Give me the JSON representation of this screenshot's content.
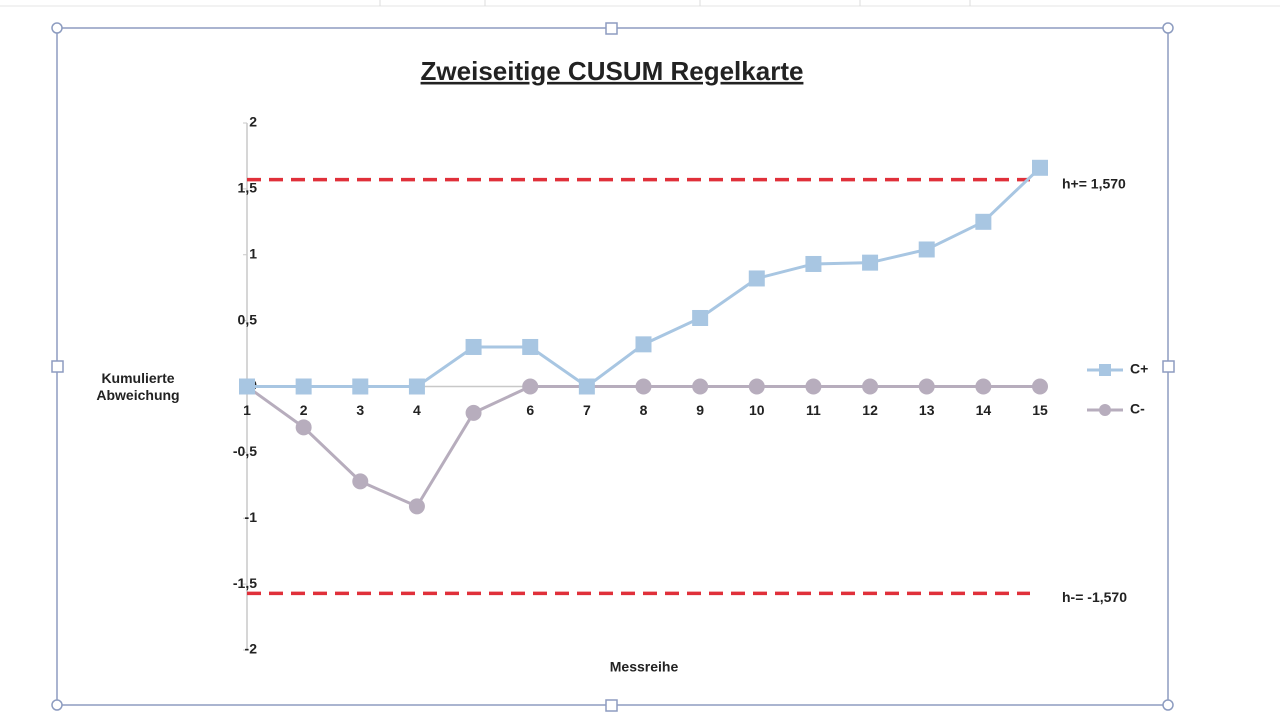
{
  "chart_data": {
    "type": "line",
    "title": "Zweiseitige CUSUM Regelkarte",
    "xlabel": "Messreihe",
    "ylabel": "Kumulierte Abweichung",
    "categories": [
      "1",
      "2",
      "3",
      "4",
      "5",
      "6",
      "7",
      "8",
      "9",
      "10",
      "11",
      "12",
      "13",
      "14",
      "15"
    ],
    "series": [
      {
        "name": "C+",
        "color": "#a8c6e2",
        "marker": "square",
        "values": [
          0,
          0,
          0,
          0,
          0.3,
          0.3,
          0,
          0.32,
          0.52,
          0.82,
          0.93,
          0.94,
          1.04,
          1.25,
          1.66
        ]
      },
      {
        "name": "C-",
        "color": "#b7adbd",
        "marker": "circle",
        "values": [
          0,
          -0.31,
          -0.72,
          -0.91,
          -0.2,
          0,
          0,
          0,
          0,
          0,
          0,
          0,
          0,
          0,
          0
        ]
      }
    ],
    "reference_lines": [
      {
        "value": 1.57,
        "label": "h+= 1,570",
        "color": "#e0303a"
      },
      {
        "value": -1.57,
        "label": "h-= -1,570",
        "color": "#e0303a"
      }
    ],
    "ylim": [
      -2,
      2
    ],
    "yticks": [
      -2,
      {
        "value": -1.5,
        "label": "-1,5"
      },
      -1,
      {
        "value": -0.5,
        "label": "-0,5"
      },
      0,
      {
        "value": 0.5,
        "label": "0,5"
      },
      1,
      {
        "value": 1.5,
        "label": "1,5"
      },
      2
    ],
    "legend": "right"
  }
}
